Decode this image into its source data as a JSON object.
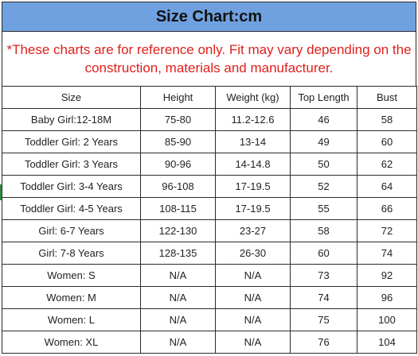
{
  "title": "Size Chart:cm",
  "note": "*These charts are for reference only. Fit may vary depending on the construction, materials and manufacturer.",
  "columns": [
    "Size",
    "Height",
    "Weight (kg)",
    "Top Length",
    "Bust"
  ],
  "rows": [
    [
      "Baby Girl:12-18M",
      "75-80",
      "11.2-12.6",
      "46",
      "58"
    ],
    [
      "Toddler Girl: 2 Years",
      "85-90",
      "13-14",
      "49",
      "60"
    ],
    [
      "Toddler Girl: 3 Years",
      "90-96",
      "14-14.8",
      "50",
      "62"
    ],
    [
      "Toddler Girl: 3-4 Years",
      "96-108",
      "17-19.5",
      "52",
      "64"
    ],
    [
      "Toddler Girl: 4-5 Years",
      "108-115",
      "17-19.5",
      "55",
      "66"
    ],
    [
      "Girl: 6-7 Years",
      "122-130",
      "23-27",
      "58",
      "72"
    ],
    [
      "Girl: 7-8 Years",
      "128-135",
      "26-30",
      "60",
      "74"
    ],
    [
      "Women: S",
      "N/A",
      "N/A",
      "73",
      "92"
    ],
    [
      "Women: M",
      "N/A",
      "N/A",
      "74",
      "96"
    ],
    [
      "Women: L",
      "N/A",
      "N/A",
      "75",
      "100"
    ],
    [
      "Women: XL",
      "N/A",
      "N/A",
      "76",
      "104"
    ]
  ]
}
